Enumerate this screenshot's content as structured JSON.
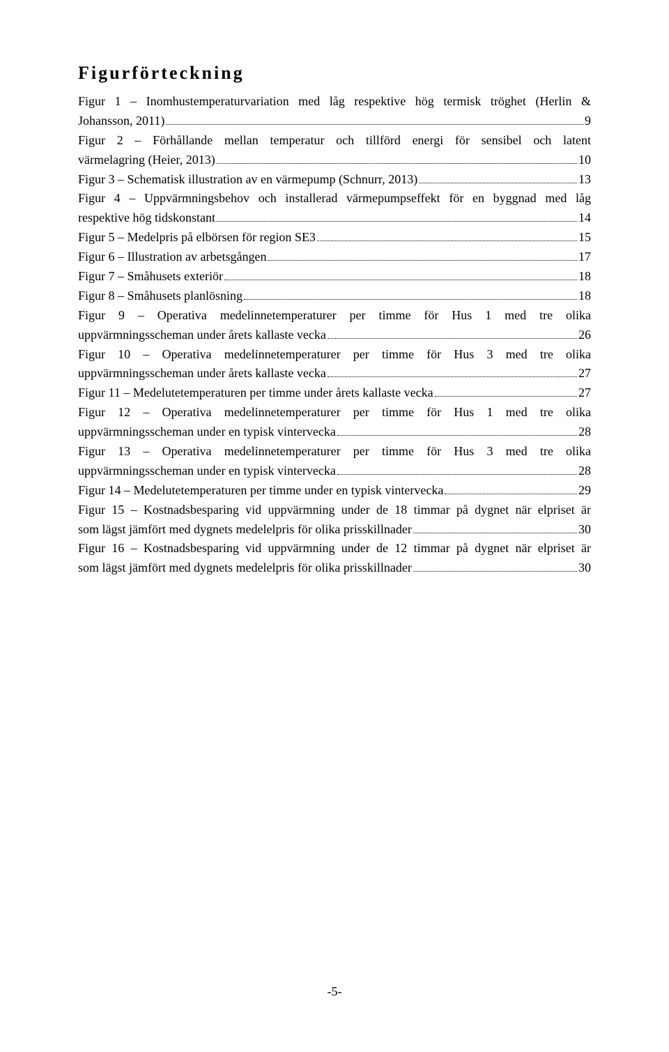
{
  "heading": "Figurförteckning",
  "entries": [
    {
      "lines": [
        "Figur 1 – Inomhustemperaturvariation med låg respektive hög termisk tröghet (Herlin &"
      ],
      "last_line": "Johansson, 2011)",
      "page": "9"
    },
    {
      "lines": [
        "Figur 2 – Förhållande mellan temperatur och tillförd energi för sensibel och latent"
      ],
      "last_line": "värmelagring (Heier, 2013)",
      "page": "10"
    },
    {
      "lines": [],
      "last_line": "Figur 3 – Schematisk illustration av en värmepump (Schnurr, 2013)",
      "page": "13"
    },
    {
      "lines": [
        "Figur 4 – Uppvärmningsbehov och installerad värmepumpseffekt för en byggnad med låg"
      ],
      "last_line": "respektive hög tidskonstant",
      "page": "14"
    },
    {
      "lines": [],
      "last_line": "Figur 5 – Medelpris på elbörsen för region SE3",
      "page": "15"
    },
    {
      "lines": [],
      "last_line": "Figur 6 – Illustration av arbetsgången",
      "page": "17"
    },
    {
      "lines": [],
      "last_line": "Figur 7 – Småhusets exteriör",
      "page": "18"
    },
    {
      "lines": [],
      "last_line": "Figur 8 – Småhusets planlösning",
      "page": "18"
    },
    {
      "lines": [
        "Figur 9 – Operativa medelinnetemperaturer per timme för Hus 1 med tre olika"
      ],
      "last_line": "uppvärmningsscheman under årets kallaste vecka",
      "page": "26"
    },
    {
      "lines": [
        "Figur 10 – Operativa medelinnetemperaturer per timme för Hus 3 med tre olika"
      ],
      "last_line": "uppvärmningsscheman under årets kallaste vecka",
      "page": "27"
    },
    {
      "lines": [],
      "last_line": "Figur 11 – Medelutetemperaturen per timme under årets kallaste vecka",
      "page": "27"
    },
    {
      "lines": [
        "Figur 12 – Operativa medelinnetemperaturer per timme för Hus 1 med tre olika"
      ],
      "last_line": "uppvärmningsscheman under en typisk vintervecka",
      "page": "28"
    },
    {
      "lines": [
        "Figur 13 – Operativa medelinnetemperaturer per timme för Hus 3 med tre olika"
      ],
      "last_line": "uppvärmningsscheman under en typisk vintervecka",
      "page": "28"
    },
    {
      "lines": [],
      "last_line": "Figur 14 – Medelutetemperaturen per timme under en typisk vintervecka",
      "page": "29"
    },
    {
      "lines": [
        "Figur 15 – Kostnadsbesparing vid uppvärmning under de 18 timmar på dygnet när elpriset är"
      ],
      "last_line": "som lägst jämfört med dygnets medelelpris för olika prisskillnader",
      "page": "30"
    },
    {
      "lines": [
        "Figur 16 – Kostnadsbesparing vid uppvärmning under de 12 timmar på dygnet när elpriset är"
      ],
      "last_line": "som lägst jämfört med dygnets medelelpris för olika prisskillnader",
      "page": "30"
    }
  ],
  "footer": "-5-"
}
